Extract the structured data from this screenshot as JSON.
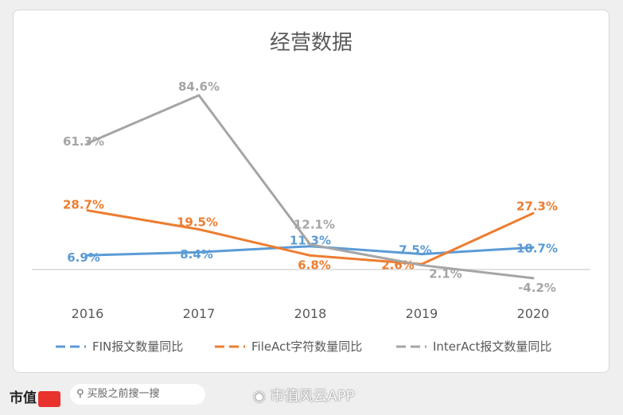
{
  "chart_data": {
    "type": "line",
    "title": "经营数据",
    "categories": [
      "2016",
      "2017",
      "2018",
      "2019",
      "2020"
    ],
    "series": [
      {
        "name": "FIN报文数量同比",
        "color": "#5b9bd5",
        "values": [
          6.9,
          8.4,
          11.3,
          7.5,
          10.7
        ],
        "labels": [
          "6.9%",
          "8.4%",
          "11.3%",
          "7.5%",
          "10.7%"
        ]
      },
      {
        "name": "FileAct字符数量同比",
        "color": "#ed7d31",
        "values": [
          28.7,
          19.5,
          6.8,
          2.6,
          27.3
        ],
        "labels": [
          "28.7%",
          "19.5%",
          "6.8%",
          "2.6%",
          "27.3%"
        ]
      },
      {
        "name": "InterAct报文数量同比",
        "color": "#a5a5a5",
        "values": [
          61.3,
          84.6,
          12.1,
          2.1,
          -4.2
        ],
        "labels": [
          "61.3%",
          "84.6%",
          "12.1%",
          "2.1%",
          "-4.2%"
        ]
      }
    ],
    "unit": "%",
    "legend": "bottom",
    "grid": false
  },
  "watermark": "市值风云",
  "footer": {
    "brand": "市值",
    "search_placeholder": "买股之前搜一搜",
    "weibo": "市值风云APP"
  }
}
